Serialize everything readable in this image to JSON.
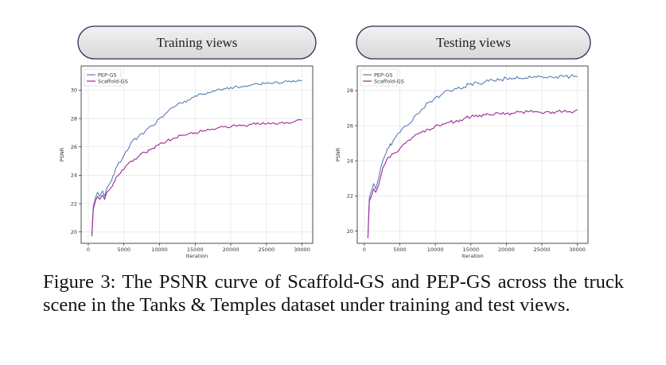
{
  "caption": "Figure 3: The PSNR curve of Scaffold-GS and PEP-GS across the truck scene in the Tanks & Temples dataset under training and test views.",
  "colors": {
    "PEP-GS": "#5b7fb4",
    "Scaffold-GS": "#a0289a"
  },
  "chart_data": [
    {
      "type": "line",
      "title": "Training views",
      "xlabel": "Iteration",
      "ylabel": "PSNR",
      "xlim": [
        -1000,
        31500
      ],
      "ylim": [
        19.2,
        31.7
      ],
      "xticks": [
        0,
        5000,
        10000,
        15000,
        20000,
        25000,
        30000
      ],
      "yticks": [
        20,
        22,
        24,
        26,
        28,
        30
      ],
      "grid": true,
      "legend_position": "top-left",
      "series": [
        {
          "name": "PEP-GS",
          "x": [
            500,
            700,
            1000,
            1300,
            1600,
            2000,
            2300,
            2600,
            3000,
            3500,
            4000,
            5000,
            6000,
            7000,
            8000,
            9000,
            10000,
            11000,
            12000,
            13000,
            14000,
            15000,
            16000,
            17000,
            18000,
            19000,
            20000,
            21000,
            22000,
            23000,
            24000,
            25000,
            26000,
            27000,
            28000,
            29000,
            30000
          ],
          "y": [
            19.7,
            21.8,
            22.4,
            22.8,
            22.5,
            22.9,
            22.5,
            23.1,
            23.4,
            24.0,
            24.6,
            25.4,
            26.3,
            26.7,
            27.1,
            27.5,
            28.0,
            28.4,
            28.8,
            29.1,
            29.3,
            29.6,
            29.7,
            29.8,
            30.0,
            30.1,
            30.2,
            30.2,
            30.3,
            30.4,
            30.4,
            30.5,
            30.5,
            30.5,
            30.6,
            30.6,
            30.7
          ]
        },
        {
          "name": "Scaffold-GS",
          "x": [
            500,
            700,
            1000,
            1300,
            1600,
            2000,
            2300,
            2600,
            3000,
            3500,
            4000,
            5000,
            6000,
            7000,
            8000,
            9000,
            10000,
            11000,
            12000,
            13000,
            14000,
            15000,
            16000,
            17000,
            18000,
            19000,
            20000,
            21000,
            22000,
            23000,
            24000,
            25000,
            26000,
            27000,
            28000,
            29000,
            30000
          ],
          "y": [
            19.7,
            21.6,
            22.2,
            22.5,
            22.3,
            22.6,
            22.3,
            22.8,
            23.0,
            23.4,
            23.9,
            24.4,
            25.0,
            25.3,
            25.6,
            25.9,
            26.2,
            26.4,
            26.6,
            26.8,
            26.9,
            27.0,
            27.1,
            27.2,
            27.3,
            27.4,
            27.4,
            27.5,
            27.5,
            27.6,
            27.6,
            27.6,
            27.7,
            27.7,
            27.7,
            27.8,
            27.9
          ]
        }
      ]
    },
    {
      "type": "line",
      "title": "Testing views",
      "xlabel": "Iteration",
      "ylabel": "PSNR",
      "xlim": [
        -1000,
        31500
      ],
      "ylim": [
        19.3,
        29.4
      ],
      "xticks": [
        0,
        5000,
        10000,
        15000,
        20000,
        25000,
        30000
      ],
      "yticks": [
        20,
        22,
        24,
        26,
        28
      ],
      "grid": true,
      "legend_position": "top-left",
      "series": [
        {
          "name": "PEP-GS",
          "x": [
            500,
            700,
            1000,
            1300,
            1600,
            2000,
            2300,
            2600,
            3000,
            3500,
            4000,
            5000,
            6000,
            7000,
            8000,
            9000,
            10000,
            11000,
            12000,
            13000,
            14000,
            15000,
            16000,
            17000,
            18000,
            19000,
            20000,
            21000,
            22000,
            23000,
            24000,
            25000,
            26000,
            27000,
            28000,
            29000,
            30000
          ],
          "y": [
            19.6,
            21.9,
            22.3,
            22.7,
            22.4,
            23.0,
            23.6,
            24.0,
            24.4,
            24.8,
            25.1,
            25.6,
            26.0,
            26.5,
            26.9,
            27.3,
            27.6,
            27.8,
            28.0,
            28.1,
            28.2,
            28.4,
            28.4,
            28.5,
            28.6,
            28.6,
            28.7,
            28.7,
            28.7,
            28.7,
            28.8,
            28.8,
            28.8,
            28.8,
            28.8,
            28.8,
            28.8
          ]
        },
        {
          "name": "Scaffold-GS",
          "x": [
            500,
            700,
            1000,
            1300,
            1600,
            2000,
            2300,
            2600,
            3000,
            3500,
            4000,
            5000,
            6000,
            7000,
            8000,
            9000,
            10000,
            11000,
            12000,
            13000,
            14000,
            15000,
            16000,
            17000,
            18000,
            19000,
            20000,
            21000,
            22000,
            23000,
            24000,
            25000,
            26000,
            27000,
            28000,
            29000,
            30000
          ],
          "y": [
            19.6,
            21.7,
            22.0,
            22.4,
            22.2,
            22.6,
            23.1,
            23.6,
            23.9,
            24.2,
            24.4,
            24.7,
            25.1,
            25.4,
            25.6,
            25.8,
            26.0,
            26.1,
            26.2,
            26.3,
            26.4,
            26.5,
            26.5,
            26.6,
            26.6,
            26.7,
            26.7,
            26.7,
            26.8,
            26.8,
            26.8,
            26.7,
            26.8,
            26.8,
            26.8,
            26.8,
            26.9
          ]
        }
      ]
    }
  ]
}
